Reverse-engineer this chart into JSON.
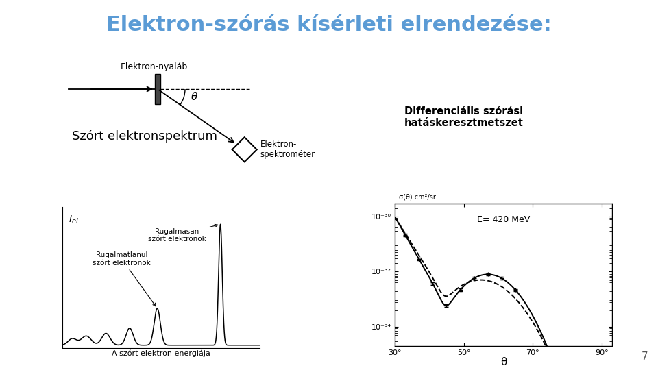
{
  "title": "Elektron-szórás kísérleti elrendezése:",
  "title_color": "#5B9BD5",
  "title_fontsize": 22,
  "background_color": "#ffffff",
  "page_number": "7",
  "label_elektron_nyalab": "Elektron-nyaláb",
  "label_differencial": "Differenciális szórási\nhatáskeresztmetszet",
  "label_szort": "Szórt elektronspektrum",
  "label_elektronspetrometer": "Elektron-\nspektrométer",
  "label_rugalmasan": "Rugalmasan\nszórt elektronok",
  "label_rugalmatlanul": "Rugalmatlanul\nszórt elektronok",
  "label_energia": "A szórt elektron energiája",
  "label_sigma": "σ(θ) cm²/sr",
  "label_energy_mev": "E= 420 MeV",
  "label_theta": "θ",
  "label_iel": "Iₑₗ"
}
